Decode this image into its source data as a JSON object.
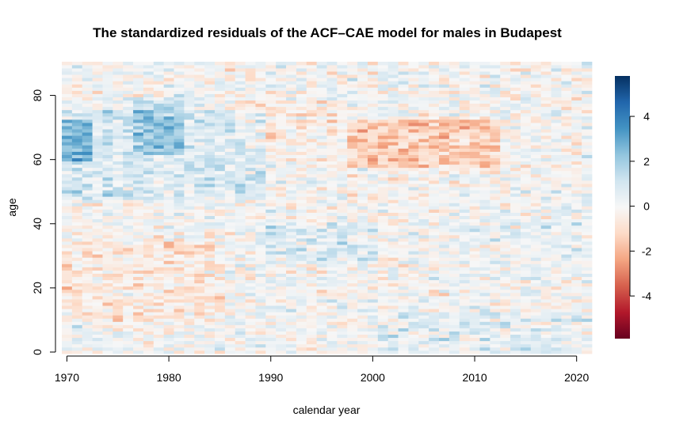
{
  "chart_data": {
    "type": "heatmap",
    "title": "The standardized residuals of the ACF–CAE model for males in Budapest",
    "xlabel": "calendar year",
    "ylabel": "age",
    "x_range": [
      1970,
      2021
    ],
    "y_range": [
      0,
      90
    ],
    "x_ticks": [
      "1970",
      "1980",
      "1990",
      "2000",
      "2010",
      "2020"
    ],
    "y_ticks": [
      "0",
      "20",
      "40",
      "60",
      "80"
    ],
    "colorbar": {
      "min": -5.9,
      "max": 5.8,
      "ticks": [
        "-4",
        "-2",
        "0",
        "2",
        "4"
      ],
      "palette": [
        "#67001f",
        "#b2182b",
        "#d6604d",
        "#f4a582",
        "#fddbc7",
        "#f7f7f7",
        "#d1e5f0",
        "#92c5de",
        "#4393c3",
        "#2166ac",
        "#053061"
      ]
    },
    "features": [
      {
        "x": [
          1970,
          1972
        ],
        "y": [
          60,
          72
        ],
        "value": 2.5
      },
      {
        "x": [
          1970,
          1989
        ],
        "y": [
          48,
          75
        ],
        "value": 1.2
      },
      {
        "x": [
          1977,
          1981
        ],
        "y": [
          62,
          78
        ],
        "value": 1.8
      },
      {
        "x": [
          1970,
          1985
        ],
        "y": [
          10,
          35
        ],
        "value": -0.9
      },
      {
        "x": [
          1990,
          2000
        ],
        "y": [
          28,
          40
        ],
        "value": 0.9
      },
      {
        "x": [
          1998,
          2012
        ],
        "y": [
          58,
          72
        ],
        "value": -2.0
      },
      {
        "x": [
          1987,
          1996
        ],
        "y": [
          66,
          78
        ],
        "value": -0.8
      },
      {
        "x": [
          2000,
          2021
        ],
        "y": [
          0,
          12
        ],
        "value": 0.7
      },
      {
        "x": [
          2010,
          2021
        ],
        "y": [
          30,
          50
        ],
        "value": 0.4
      }
    ]
  }
}
